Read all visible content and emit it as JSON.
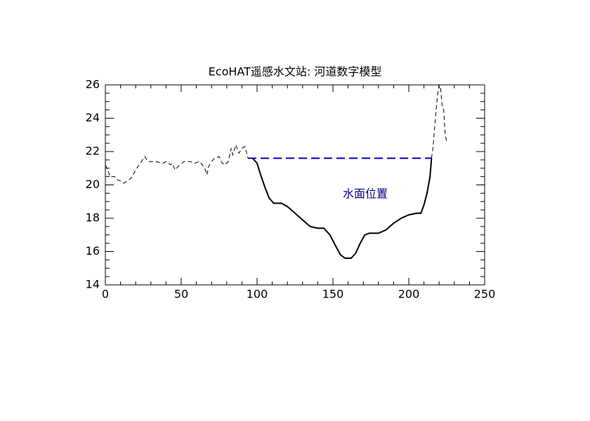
{
  "chart_data": {
    "type": "line",
    "title": "EcoHAT遥感水文站: 河道数字模型",
    "annotation": "水面位置",
    "xlim": [
      0,
      250
    ],
    "xticks": [
      0,
      50,
      100,
      150,
      200,
      250
    ],
    "ylim": [
      14,
      26
    ],
    "yticks": [
      14,
      16,
      18,
      20,
      22,
      24,
      26
    ],
    "series": [
      {
        "color": "#000000",
        "line_style": "dashed",
        "x": [
          0,
          2,
          3,
          6,
          8,
          11,
          12,
          14,
          17,
          20,
          23,
          26,
          28,
          33,
          38,
          40,
          43,
          44,
          46,
          49,
          52,
          56,
          59,
          62,
          64,
          66,
          67,
          68,
          70,
          72,
          75,
          77,
          79,
          81,
          83,
          84,
          86,
          88,
          90,
          92,
          94
        ],
        "values": [
          21.2,
          20.8,
          20.5,
          20.5,
          20.3,
          20.2,
          20.1,
          20.2,
          20.4,
          20.9,
          21.3,
          21.7,
          21.4,
          21.4,
          21.3,
          21.4,
          21.2,
          21.3,
          20.9,
          21.2,
          21.4,
          21.4,
          21.3,
          21.4,
          21.2,
          20.9,
          20.6,
          21.1,
          21.4,
          21.6,
          21.7,
          21.3,
          21.2,
          21.4,
          22.2,
          21.8,
          22.4,
          21.9,
          22.2,
          22.3,
          21.6
        ]
      },
      {
        "color": "#000000",
        "line_style": "solid",
        "x": [
          94,
          97,
          100,
          102,
          105,
          108,
          111,
          116,
          120,
          125,
          130,
          135,
          140,
          144,
          148,
          152,
          155,
          158,
          162,
          165,
          168,
          171,
          174,
          180,
          185,
          190,
          195,
          200,
          205,
          208,
          210,
          212,
          214,
          215
        ],
        "values": [
          21.6,
          21.6,
          21.3,
          20.7,
          19.9,
          19.2,
          18.9,
          18.9,
          18.7,
          18.3,
          17.9,
          17.5,
          17.4,
          17.4,
          17.0,
          16.3,
          15.8,
          15.6,
          15.6,
          15.9,
          16.5,
          17.0,
          17.1,
          17.1,
          17.3,
          17.7,
          18.0,
          18.2,
          18.3,
          18.3,
          18.8,
          19.5,
          20.5,
          21.6
        ]
      },
      {
        "color": "#000000",
        "line_style": "dashed",
        "x": [
          215,
          216,
          218,
          219,
          220,
          221,
          222,
          223,
          224,
          225
        ],
        "values": [
          21.6,
          22.3,
          24.5,
          25.4,
          26.0,
          25.8,
          24.7,
          24.5,
          23.0,
          22.6
        ]
      },
      {
        "color": "#0000aa",
        "line_style": "water",
        "x": [
          94,
          215
        ],
        "values": [
          21.6,
          21.6
        ]
      }
    ]
  }
}
